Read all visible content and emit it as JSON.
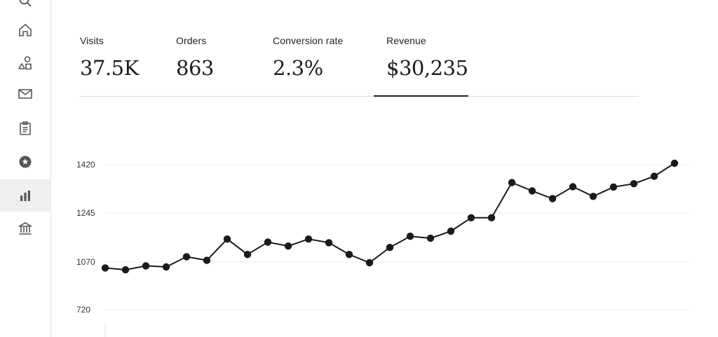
{
  "sidebar": {
    "items": [
      {
        "icon": "search-icon"
      },
      {
        "icon": "home-icon"
      },
      {
        "icon": "shapes-icon"
      },
      {
        "icon": "mail-icon"
      },
      {
        "icon": "clipboard-icon"
      },
      {
        "icon": "star-badge-icon"
      },
      {
        "icon": "bar-chart-icon",
        "active": true
      },
      {
        "icon": "bank-icon"
      }
    ]
  },
  "metrics": [
    {
      "label": "Visits",
      "value": "37.5K"
    },
    {
      "label": "Orders",
      "value": "863"
    },
    {
      "label": "Conversion rate",
      "value": "2.3%"
    },
    {
      "label": "Revenue",
      "value": "$30,235",
      "selected": true
    }
  ],
  "chart_data": {
    "type": "line",
    "yticks": [
      720,
      1070,
      1245,
      1420
    ],
    "ylim": [
      700,
      1440
    ],
    "grid": true,
    "series": [
      {
        "values": [
          1027,
          1013,
          1042,
          1034,
          1089,
          1076,
          1152,
          1097,
          1141,
          1127,
          1152,
          1139,
          1097,
          1065,
          1122,
          1162,
          1155,
          1180,
          1228,
          1228,
          1355,
          1325,
          1297,
          1340,
          1305,
          1339,
          1351,
          1378,
          1425
        ]
      }
    ],
    "line_color": "#1a1a1a"
  }
}
